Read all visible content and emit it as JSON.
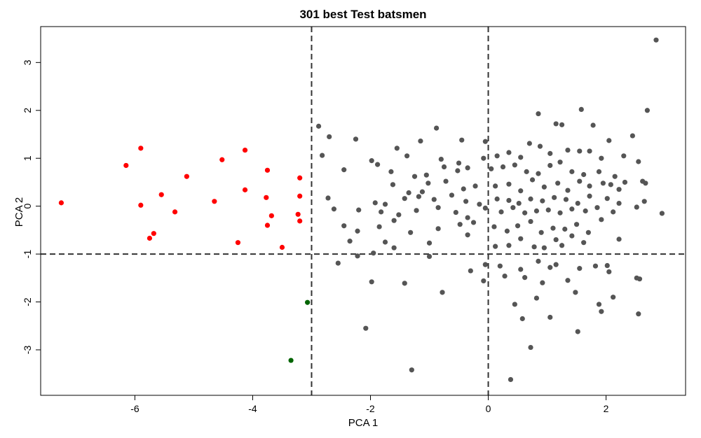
{
  "chart_data": {
    "type": "scatter",
    "title": "301 best Test batsmen",
    "xlabel": "PCA 1",
    "ylabel": "PCA 2",
    "xlim": [
      -7.6,
      3.35
    ],
    "ylim": [
      -3.95,
      3.75
    ],
    "xticks": [
      -6,
      -4,
      -2,
      0,
      2
    ],
    "yticks": [
      -3,
      -2,
      -1,
      0,
      1,
      2,
      3
    ],
    "grid": false,
    "reference_lines": {
      "vertical": [
        -3,
        0
      ],
      "horizontal": [
        -1
      ],
      "style": "dashed"
    },
    "colors": {
      "red": "#ff0000",
      "green": "#006400",
      "gray": "#555555",
      "lines": "#333333"
    },
    "series": [
      {
        "color": "#ff0000",
        "points": [
          [
            -7.25,
            0.07
          ],
          [
            -6.15,
            0.85
          ],
          [
            -5.9,
            1.21
          ],
          [
            -5.9,
            0.02
          ],
          [
            -5.55,
            0.24
          ],
          [
            -5.75,
            -0.67
          ],
          [
            -5.68,
            -0.57
          ],
          [
            -5.12,
            0.62
          ],
          [
            -5.32,
            -0.12
          ],
          [
            -4.65,
            0.1
          ],
          [
            -4.52,
            0.97
          ],
          [
            -4.13,
            1.17
          ],
          [
            -4.13,
            0.34
          ],
          [
            -4.25,
            -0.76
          ],
          [
            -3.75,
            0.75
          ],
          [
            -3.77,
            0.18
          ],
          [
            -3.75,
            -0.4
          ],
          [
            -3.68,
            -0.2
          ],
          [
            -3.5,
            -0.86
          ],
          [
            -3.2,
            0.59
          ],
          [
            -3.2,
            0.21
          ],
          [
            -3.23,
            -0.17
          ],
          [
            -3.2,
            -0.31
          ]
        ]
      },
      {
        "color": "#006400",
        "points": [
          [
            -3.07,
            -2.01
          ],
          [
            -3.35,
            -3.22
          ]
        ]
      },
      {
        "color": "#555555",
        "points": [
          [
            2.85,
            3.47
          ],
          [
            2.7,
            2.0
          ],
          [
            1.58,
            2.02
          ],
          [
            0.85,
            1.93
          ],
          [
            -0.88,
            1.63
          ],
          [
            -2.88,
            1.67
          ],
          [
            -2.7,
            1.45
          ],
          [
            -2.25,
            1.4
          ],
          [
            -1.55,
            1.21
          ],
          [
            -1.15,
            1.36
          ],
          [
            -0.45,
            1.38
          ],
          [
            1.15,
            1.72
          ],
          [
            1.25,
            1.7
          ],
          [
            1.78,
            1.69
          ],
          [
            2.05,
            1.37
          ],
          [
            2.45,
            1.47
          ],
          [
            0.7,
            1.31
          ],
          [
            -0.05,
            1.35
          ],
          [
            -2.82,
            1.06
          ],
          [
            -1.98,
            0.95
          ],
          [
            -1.88,
            0.87
          ],
          [
            -1.38,
            1.05
          ],
          [
            -0.8,
            0.98
          ],
          [
            -0.5,
            0.9
          ],
          [
            -0.08,
            1.0
          ],
          [
            0.15,
            1.05
          ],
          [
            0.35,
            1.12
          ],
          [
            0.55,
            1.02
          ],
          [
            0.88,
            1.25
          ],
          [
            1.05,
            1.1
          ],
          [
            1.35,
            1.17
          ],
          [
            1.55,
            1.15
          ],
          [
            1.72,
            1.15
          ],
          [
            1.92,
            1.0
          ],
          [
            2.3,
            1.05
          ],
          [
            2.55,
            0.93
          ],
          [
            -2.45,
            0.76
          ],
          [
            -1.65,
            0.72
          ],
          [
            -1.25,
            0.62
          ],
          [
            -1.05,
            0.65
          ],
          [
            -0.75,
            0.82
          ],
          [
            -0.52,
            0.74
          ],
          [
            -0.35,
            0.8
          ],
          [
            0.05,
            0.78
          ],
          [
            0.25,
            0.82
          ],
          [
            0.45,
            0.86
          ],
          [
            0.65,
            0.72
          ],
          [
            0.85,
            0.68
          ],
          [
            1.05,
            0.85
          ],
          [
            1.22,
            0.92
          ],
          [
            1.42,
            0.72
          ],
          [
            1.62,
            0.66
          ],
          [
            1.88,
            0.72
          ],
          [
            2.15,
            0.62
          ],
          [
            2.32,
            0.5
          ],
          [
            2.62,
            0.52
          ],
          [
            -1.62,
            0.45
          ],
          [
            -1.35,
            0.28
          ],
          [
            -1.12,
            0.3
          ],
          [
            -1.02,
            0.48
          ],
          [
            -0.72,
            0.52
          ],
          [
            -0.42,
            0.36
          ],
          [
            -0.22,
            0.42
          ],
          [
            0.12,
            0.42
          ],
          [
            0.35,
            0.46
          ],
          [
            0.55,
            0.32
          ],
          [
            0.75,
            0.55
          ],
          [
            0.95,
            0.4
          ],
          [
            1.18,
            0.48
          ],
          [
            1.35,
            0.33
          ],
          [
            1.55,
            0.52
          ],
          [
            1.72,
            0.42
          ],
          [
            1.95,
            0.48
          ],
          [
            2.08,
            0.45
          ],
          [
            2.22,
            0.35
          ],
          [
            2.67,
            0.48
          ],
          [
            -2.72,
            0.17
          ],
          [
            -1.92,
            0.07
          ],
          [
            -1.75,
            0.04
          ],
          [
            -1.42,
            0.16
          ],
          [
            -1.18,
            0.2
          ],
          [
            -0.92,
            0.14
          ],
          [
            -0.62,
            0.23
          ],
          [
            -0.38,
            0.1
          ],
          [
            -0.15,
            0.04
          ],
          [
            0.15,
            0.15
          ],
          [
            0.35,
            0.12
          ],
          [
            0.52,
            0.06
          ],
          [
            0.72,
            0.15
          ],
          [
            0.92,
            0.11
          ],
          [
            1.12,
            0.18
          ],
          [
            1.32,
            0.14
          ],
          [
            1.52,
            0.06
          ],
          [
            1.72,
            0.21
          ],
          [
            2.02,
            0.16
          ],
          [
            2.22,
            0.06
          ],
          [
            2.65,
            0.1
          ],
          [
            -2.62,
            -0.06
          ],
          [
            -2.2,
            -0.08
          ],
          [
            -1.82,
            -0.12
          ],
          [
            -1.52,
            -0.18
          ],
          [
            -1.22,
            -0.09
          ],
          [
            -0.85,
            -0.03
          ],
          [
            -0.55,
            -0.13
          ],
          [
            -0.35,
            -0.24
          ],
          [
            -0.05,
            -0.04
          ],
          [
            0.22,
            -0.12
          ],
          [
            0.42,
            -0.03
          ],
          [
            0.62,
            -0.14
          ],
          [
            0.82,
            -0.1
          ],
          [
            1.02,
            -0.08
          ],
          [
            1.22,
            -0.14
          ],
          [
            1.42,
            -0.06
          ],
          [
            1.65,
            -0.1
          ],
          [
            1.85,
            -0.03
          ],
          [
            2.12,
            -0.12
          ],
          [
            2.52,
            -0.02
          ],
          [
            2.95,
            -0.15
          ],
          [
            -2.45,
            -0.41
          ],
          [
            -2.22,
            -0.52
          ],
          [
            -1.85,
            -0.43
          ],
          [
            -1.6,
            -0.3
          ],
          [
            -1.32,
            -0.55
          ],
          [
            -0.85,
            -0.47
          ],
          [
            -0.48,
            -0.38
          ],
          [
            -0.25,
            -0.34
          ],
          [
            0.1,
            -0.43
          ],
          [
            0.32,
            -0.52
          ],
          [
            0.5,
            -0.41
          ],
          [
            0.72,
            -0.32
          ],
          [
            0.9,
            -0.55
          ],
          [
            1.1,
            -0.46
          ],
          [
            1.3,
            -0.48
          ],
          [
            1.5,
            -0.38
          ],
          [
            1.7,
            -0.55
          ],
          [
            1.92,
            -0.28
          ],
          [
            -2.35,
            -0.73
          ],
          [
            -1.75,
            -0.75
          ],
          [
            -1.6,
            -0.87
          ],
          [
            -1.0,
            -0.77
          ],
          [
            -0.35,
            -0.6
          ],
          [
            0.12,
            -0.84
          ],
          [
            0.35,
            -0.82
          ],
          [
            0.55,
            -0.68
          ],
          [
            0.78,
            -0.85
          ],
          [
            0.95,
            -0.87
          ],
          [
            1.15,
            -0.7
          ],
          [
            1.25,
            -0.82
          ],
          [
            1.42,
            -0.62
          ],
          [
            1.62,
            -0.76
          ],
          [
            2.22,
            -0.69
          ],
          [
            -2.55,
            -1.19
          ],
          [
            -2.22,
            -1.04
          ],
          [
            -1.95,
            -0.98
          ],
          [
            -1.0,
            -1.05
          ],
          [
            -0.3,
            -1.35
          ],
          [
            -0.05,
            -1.22
          ],
          [
            0.2,
            -1.25
          ],
          [
            0.55,
            -1.32
          ],
          [
            0.85,
            -1.15
          ],
          [
            1.05,
            -1.28
          ],
          [
            1.15,
            -1.22
          ],
          [
            1.55,
            -1.3
          ],
          [
            1.82,
            -1.25
          ],
          [
            2.02,
            -1.24
          ],
          [
            2.05,
            -1.37
          ],
          [
            -1.98,
            -1.58
          ],
          [
            -1.42,
            -1.61
          ],
          [
            -0.08,
            -1.56
          ],
          [
            0.28,
            -1.46
          ],
          [
            0.62,
            -1.49
          ],
          [
            0.92,
            -1.6
          ],
          [
            1.35,
            -1.55
          ],
          [
            1.48,
            -1.8
          ],
          [
            2.52,
            -1.5
          ],
          [
            2.57,
            -1.52
          ],
          [
            -0.78,
            -1.8
          ],
          [
            0.45,
            -2.05
          ],
          [
            0.82,
            -1.92
          ],
          [
            1.05,
            -2.32
          ],
          [
            1.92,
            -2.2
          ],
          [
            2.12,
            -1.9
          ],
          [
            2.55,
            -2.25
          ],
          [
            1.88,
            -2.05
          ],
          [
            -2.08,
            -2.55
          ],
          [
            0.58,
            -2.35
          ],
          [
            0.72,
            -2.95
          ],
          [
            1.52,
            -2.62
          ],
          [
            -1.3,
            -3.42
          ],
          [
            0.38,
            -3.62
          ]
        ]
      }
    ]
  }
}
